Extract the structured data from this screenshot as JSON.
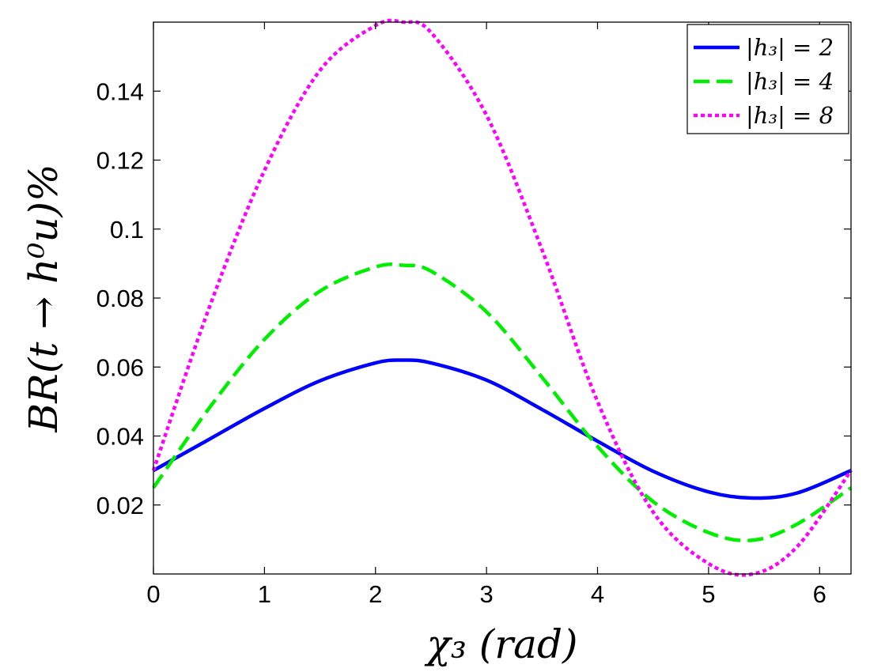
{
  "chart_data": {
    "type": "line",
    "title": "",
    "xlabel": "χ₃ (rad)",
    "ylabel": "BR(t → h⁰u)%",
    "xlim": [
      0,
      6.2832
    ],
    "ylim": [
      0,
      0.16
    ],
    "x_ticks": [
      0,
      1,
      2,
      3,
      4,
      5,
      6
    ],
    "x_tick_labels": [
      "0",
      "1",
      "2",
      "3",
      "4",
      "5",
      "6"
    ],
    "y_ticks": [
      0.02,
      0.04,
      0.06,
      0.08,
      0.1,
      0.12,
      0.14
    ],
    "y_tick_labels": [
      "0.02",
      "0.04",
      "0.06",
      "0.08",
      "0.1",
      "0.12",
      "0.14"
    ],
    "grid": false,
    "legend_position": "top-right",
    "x": [
      0,
      0.5,
      1.0,
      1.5,
      2.0,
      2.25,
      2.5,
      3.0,
      3.5,
      4.0,
      4.5,
      5.0,
      5.4,
      5.8,
      6.2832
    ],
    "series": [
      {
        "name": "|h₃| = 2",
        "color": "#0000ff",
        "style": "solid",
        "values": [
          0.03,
          0.039,
          0.048,
          0.056,
          0.0612,
          0.062,
          0.0612,
          0.0562,
          0.0477,
          0.0385,
          0.0298,
          0.0238,
          0.022,
          0.0235,
          0.03
        ]
      },
      {
        "name": "|h₃| = 4",
        "color": "#00ee00",
        "style": "dashed",
        "values": [
          0.025,
          0.048,
          0.068,
          0.082,
          0.089,
          0.0895,
          0.0878,
          0.076,
          0.057,
          0.037,
          0.021,
          0.012,
          0.0098,
          0.0145,
          0.025
        ]
      },
      {
        "name": "|h₃| = 8",
        "color": "#ff00ff",
        "style": "dotted",
        "values": [
          0.03,
          0.077,
          0.117,
          0.146,
          0.159,
          0.16,
          0.157,
          0.133,
          0.094,
          0.05,
          0.018,
          0.003,
          0.0,
          0.008,
          0.03
        ]
      }
    ]
  }
}
